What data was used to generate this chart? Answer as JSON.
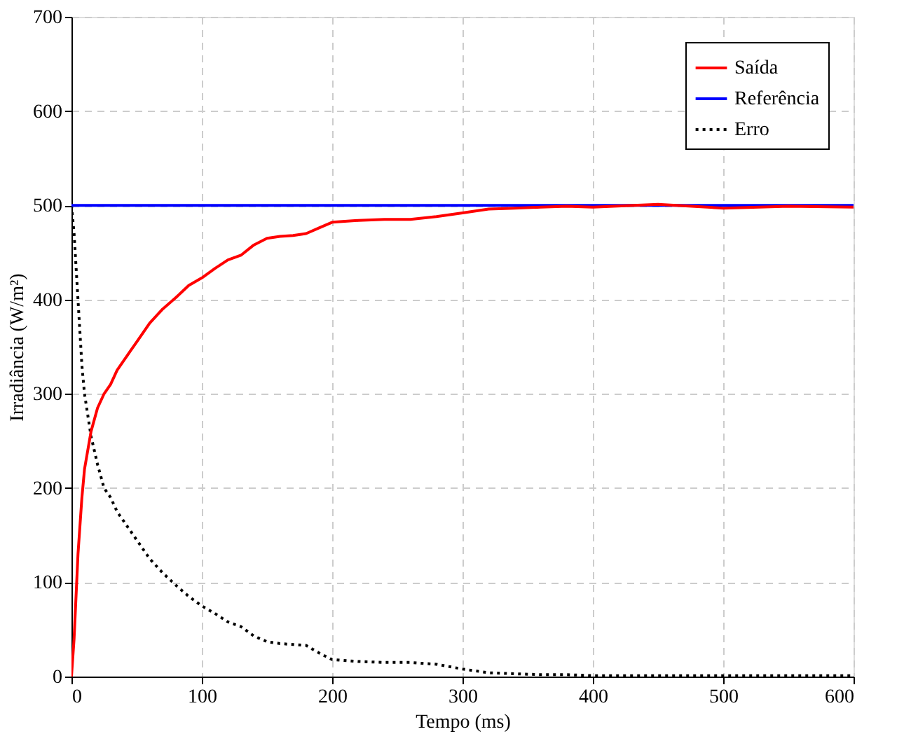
{
  "chart_data": {
    "type": "line",
    "xlabel": "Tempo (ms)",
    "ylabel": "Irradiância (W/m²)",
    "x": [
      0,
      2,
      5,
      8,
      10,
      15,
      20,
      25,
      30,
      35,
      40,
      45,
      50,
      55,
      60,
      70,
      80,
      90,
      100,
      110,
      120,
      130,
      140,
      150,
      160,
      170,
      180,
      190,
      200,
      220,
      240,
      260,
      280,
      300,
      320,
      340,
      360,
      380,
      400,
      450,
      500,
      550,
      600
    ],
    "xlim": [
      0,
      600
    ],
    "xticks": [
      0,
      100,
      200,
      300,
      400,
      500,
      600
    ],
    "ylim": [
      0,
      700
    ],
    "yticks": [
      0,
      100,
      200,
      300,
      400,
      500,
      600,
      700
    ],
    "grid": true,
    "legend": "top right",
    "marker": "none",
    "series": [
      {
        "name": "Saída",
        "color": "#ff0000",
        "line_style": "solid",
        "values": [
          0,
          40,
          130,
          190,
          220,
          260,
          285,
          300,
          310,
          325,
          335,
          345,
          355,
          365,
          375,
          390,
          402,
          415,
          423,
          433,
          442,
          447,
          458,
          465,
          467,
          468,
          470,
          476,
          482,
          484,
          485,
          485,
          488,
          492,
          496,
          497,
          498,
          499,
          498,
          501,
          497,
          499,
          498
        ]
      },
      {
        "name": "Referência",
        "color": "#0000ff",
        "line_style": "solid",
        "values": [
          500,
          500,
          500,
          500,
          500,
          500,
          500,
          500,
          500,
          500,
          500,
          500,
          500,
          500,
          500,
          500,
          500,
          500,
          500,
          500,
          500,
          500,
          500,
          500,
          500,
          500,
          500,
          500,
          500,
          500,
          500,
          500,
          500,
          500,
          500,
          500,
          500,
          500,
          500,
          500,
          500,
          500,
          500
        ]
      },
      {
        "name": "Erro",
        "color": "#000000",
        "line_style": "dotted",
        "values": [
          500,
          470,
          400,
          330,
          300,
          255,
          225,
          200,
          190,
          175,
          165,
          155,
          145,
          135,
          125,
          110,
          97,
          85,
          75,
          67,
          58,
          53,
          43,
          37,
          35,
          34,
          33,
          25,
          18,
          16,
          15,
          15,
          13,
          8,
          4,
          3,
          2,
          2,
          1,
          1,
          1,
          1,
          1
        ]
      }
    ]
  }
}
